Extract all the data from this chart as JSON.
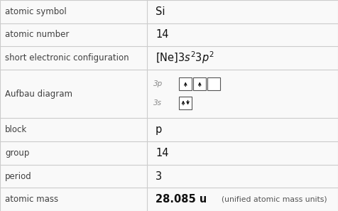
{
  "rows": [
    {
      "label": "atomic symbol",
      "value": "Si",
      "value_style": "plain"
    },
    {
      "label": "atomic number",
      "value": "14",
      "value_style": "plain"
    },
    {
      "label": "short electronic configuration",
      "value": "[Ne]3s^23p^2",
      "value_style": "formula"
    },
    {
      "label": "Aufbau diagram",
      "value": "",
      "value_style": "aufbau"
    },
    {
      "label": "block",
      "value": "p",
      "value_style": "plain"
    },
    {
      "label": "group",
      "value": "14",
      "value_style": "plain"
    },
    {
      "label": "period",
      "value": "3",
      "value_style": "plain"
    },
    {
      "label": "atomic mass",
      "value": "28.085 u",
      "value_style": "bold_partial",
      "suffix": "(unified atomic mass units)"
    }
  ],
  "col_split": 0.435,
  "bg_color": "#f9f9f9",
  "line_color": "#cccccc",
  "label_color": "#404040",
  "value_color": "#111111",
  "font_size_label": 8.5,
  "font_size_value": 10.5,
  "row_heights": [
    1,
    1,
    1,
    2.1,
    1,
    1,
    1,
    1
  ]
}
